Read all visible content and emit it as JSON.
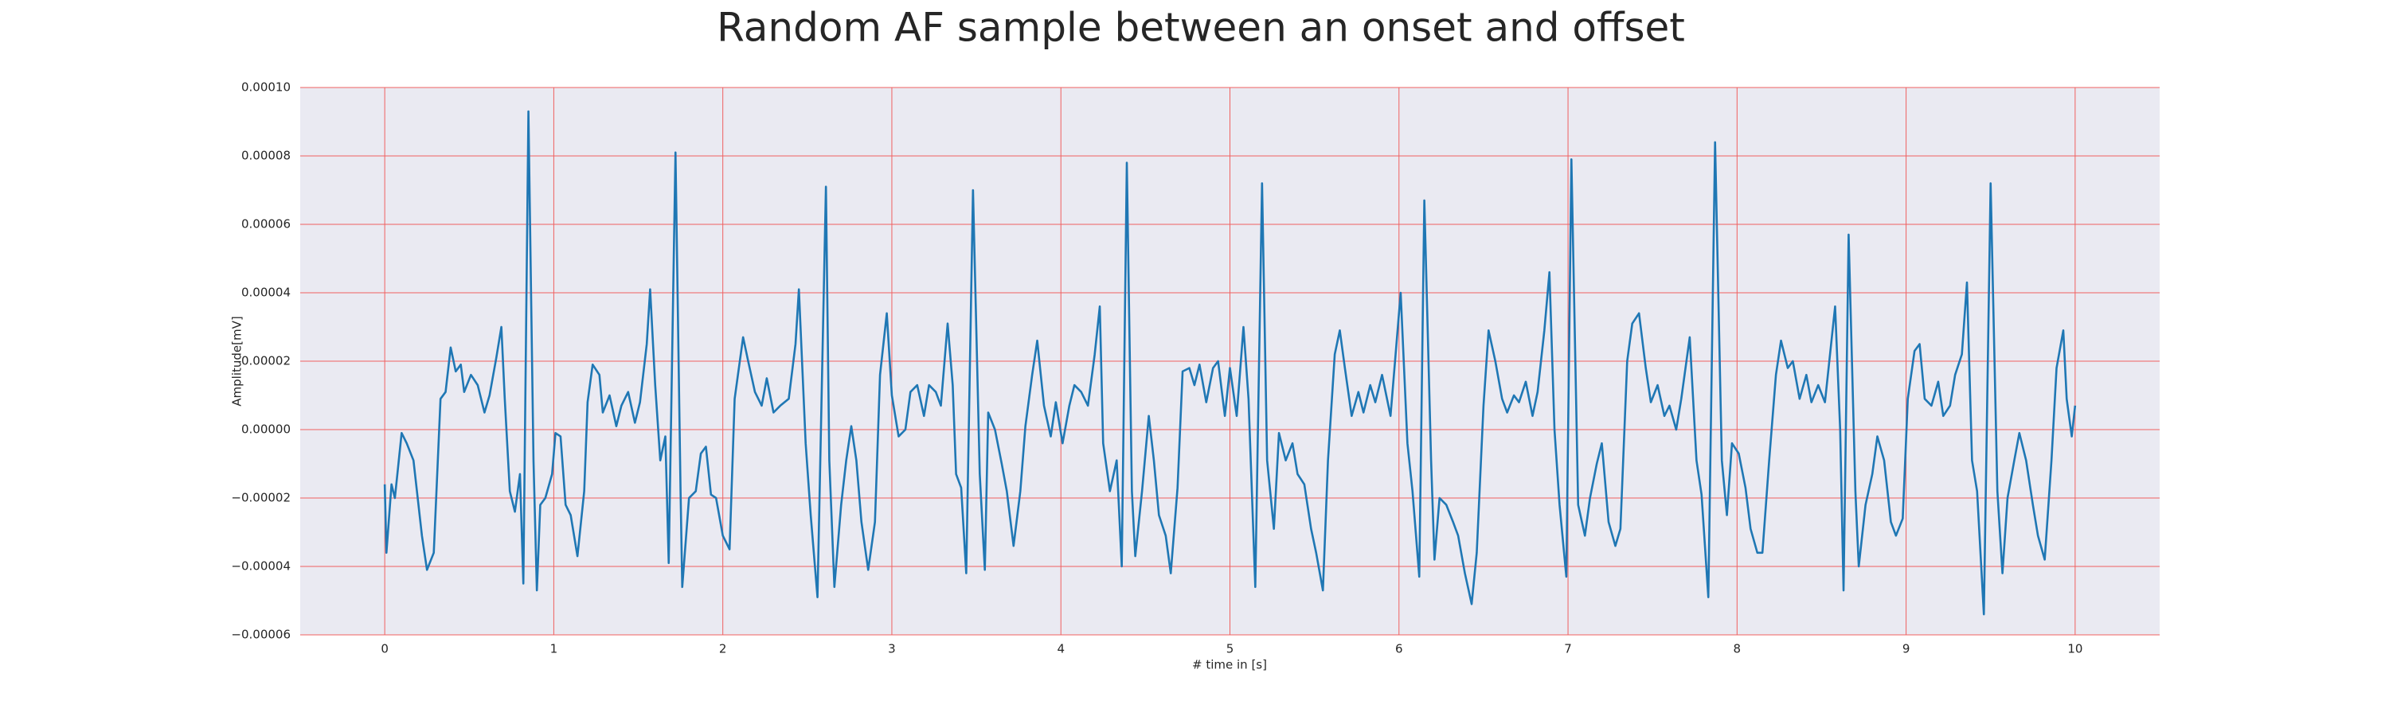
{
  "chart_data": {
    "type": "line",
    "title": "Random AF sample between an onset and offset",
    "xlabel": "# time in [s]",
    "ylabel": "Amplitude[mV]",
    "color": "#1f77b4",
    "grid": true,
    "grid_color": "#f06060",
    "background": "#eaeaf2",
    "xlim": [
      -0.5,
      10.5
    ],
    "ylim": [
      -6e-05,
      0.0001
    ],
    "xticks": [
      0,
      1,
      2,
      3,
      4,
      5,
      6,
      7,
      8,
      9,
      10
    ],
    "yticks": [
      {
        "value": -6e-05,
        "label": "−0.00006"
      },
      {
        "value": -4e-05,
        "label": "−0.00004"
      },
      {
        "value": -2e-05,
        "label": "−0.00002"
      },
      {
        "value": 0,
        "label": "0.00000"
      },
      {
        "value": 2e-05,
        "label": "0.00002"
      },
      {
        "value": 4e-05,
        "label": "0.00004"
      },
      {
        "value": 6e-05,
        "label": "0.00006"
      },
      {
        "value": 8e-05,
        "label": "0.00008"
      },
      {
        "value": 0.0001,
        "label": "0.00010"
      }
    ],
    "x": [
      0,
      0.01,
      0.04,
      0.06,
      0.1,
      0.13,
      0.17,
      0.22,
      0.25,
      0.29,
      0.33,
      0.36,
      0.39,
      0.42,
      0.45,
      0.47,
      0.51,
      0.55,
      0.59,
      0.62,
      0.66,
      0.69,
      0.71,
      0.74,
      0.77,
      0.8,
      0.82,
      0.85,
      0.88,
      0.9,
      0.92,
      0.95,
      0.99,
      1.01,
      1.04,
      1.07,
      1.1,
      1.14,
      1.18,
      1.2,
      1.23,
      1.27,
      1.29,
      1.33,
      1.37,
      1.4,
      1.44,
      1.48,
      1.51,
      1.55,
      1.57,
      1.6,
      1.63,
      1.66,
      1.68,
      1.72,
      1.75,
      1.76,
      1.8,
      1.84,
      1.87,
      1.9,
      1.93,
      1.96,
      2.0,
      2.04,
      2.07,
      2.12,
      2.15,
      2.19,
      2.23,
      2.26,
      2.3,
      2.34,
      2.39,
      2.43,
      2.45,
      2.49,
      2.52,
      2.56,
      2.61,
      2.63,
      2.66,
      2.7,
      2.73,
      2.76,
      2.79,
      2.82,
      2.86,
      2.9,
      2.93,
      2.97,
      3.0,
      3.04,
      3.08,
      3.11,
      3.15,
      3.19,
      3.22,
      3.26,
      3.29,
      3.33,
      3.36,
      3.38,
      3.41,
      3.44,
      3.48,
      3.52,
      3.55,
      3.57,
      3.61,
      3.65,
      3.68,
      3.72,
      3.76,
      3.79,
      3.83,
      3.86,
      3.9,
      3.94,
      3.97,
      4.01,
      4.05,
      4.08,
      4.12,
      4.16,
      4.2,
      4.23,
      4.25,
      4.29,
      4.33,
      4.36,
      4.39,
      4.42,
      4.44,
      4.48,
      4.52,
      4.55,
      4.58,
      4.62,
      4.65,
      4.69,
      4.72,
      4.76,
      4.79,
      4.82,
      4.86,
      4.9,
      4.93,
      4.97,
      5.0,
      5.04,
      5.08,
      5.11,
      5.15,
      5.19,
      5.22,
      5.26,
      5.29,
      5.33,
      5.37,
      5.4,
      5.44,
      5.48,
      5.51,
      5.55,
      5.58,
      5.62,
      5.65,
      5.68,
      5.72,
      5.76,
      5.79,
      5.83,
      5.86,
      5.9,
      5.95,
      5.98,
      6.01,
      6.05,
      6.08,
      6.12,
      6.15,
      6.19,
      6.21,
      6.24,
      6.28,
      6.32,
      6.35,
      6.39,
      6.43,
      6.46,
      6.5,
      6.53,
      6.57,
      6.61,
      6.64,
      6.68,
      6.71,
      6.75,
      6.79,
      6.82,
      6.86,
      6.89,
      6.92,
      6.95,
      6.99,
      7.02,
      7.06,
      7.1,
      7.13,
      7.17,
      7.2,
      7.24,
      7.28,
      7.31,
      7.35,
      7.38,
      7.42,
      7.46,
      7.49,
      7.53,
      7.57,
      7.6,
      7.64,
      7.67,
      7.72,
      7.76,
      7.79,
      7.83,
      7.87,
      7.91,
      7.94,
      7.97,
      8.01,
      8.05,
      8.08,
      8.12,
      8.15,
      8.19,
      8.23,
      8.26,
      8.3,
      8.33,
      8.37,
      8.41,
      8.44,
      8.48,
      8.52,
      8.55,
      8.58,
      8.61,
      8.63,
      8.66,
      8.7,
      8.72,
      8.76,
      8.8,
      8.83,
      8.87,
      8.91,
      8.94,
      8.98,
      9.01,
      9.05,
      9.08,
      9.11,
      9.15,
      9.19,
      9.22,
      9.26,
      9.29,
      9.33,
      9.36,
      9.39,
      9.42,
      9.46,
      9.5,
      9.54,
      9.57,
      9.6,
      9.64,
      9.67,
      9.71,
      9.75,
      9.78,
      9.82,
      9.86,
      9.89,
      9.93,
      9.95,
      9.98,
      10.0
    ],
    "values": [
      -1.6e-05,
      -3.6e-05,
      -1.6e-05,
      -2e-05,
      -1e-06,
      -4e-06,
      -9e-06,
      -3.1e-05,
      -4.1e-05,
      -3.6e-05,
      9e-06,
      1.1e-05,
      2.4e-05,
      1.7e-05,
      1.9e-05,
      1.1e-05,
      1.6e-05,
      1.3e-05,
      5e-06,
      1e-05,
      2.1e-05,
      3e-05,
      9e-06,
      -1.8e-05,
      -2.4e-05,
      -1.3e-05,
      -4.5e-05,
      9.3e-05,
      -9e-06,
      -4.7e-05,
      -2.2e-05,
      -2e-05,
      -1.3e-05,
      -1e-06,
      -2e-06,
      -2.2e-05,
      -2.5e-05,
      -3.7e-05,
      -1.8e-05,
      8e-06,
      1.9e-05,
      1.6e-05,
      5e-06,
      1e-05,
      1e-06,
      7e-06,
      1.1e-05,
      2e-06,
      8e-06,
      2.5e-05,
      4.1e-05,
      1.3e-05,
      -9e-06,
      -2e-06,
      -3.9e-05,
      8.1e-05,
      -1.8e-05,
      -4.6e-05,
      -2e-05,
      -1.8e-05,
      -7e-06,
      -5e-06,
      -1.9e-05,
      -2e-05,
      -3.1e-05,
      -3.5e-05,
      9e-06,
      2.7e-05,
      2e-05,
      1.1e-05,
      7e-06,
      1.5e-05,
      5e-06,
      7e-06,
      9e-06,
      2.5e-05,
      4.1e-05,
      -4e-06,
      -2.5e-05,
      -4.9e-05,
      7.1e-05,
      -9e-06,
      -4.6e-05,
      -2.2e-05,
      -9e-06,
      1e-06,
      -9e-06,
      -2.7e-05,
      -4.1e-05,
      -2.7e-05,
      1.6e-05,
      3.4e-05,
      1e-05,
      -2e-06,
      0,
      1.1e-05,
      1.3e-05,
      4e-06,
      1.3e-05,
      1.1e-05,
      7e-06,
      3.1e-05,
      1.3e-05,
      -1.3e-05,
      -1.7e-05,
      -4.2e-05,
      7e-05,
      -1.3e-05,
      -4.1e-05,
      5e-06,
      0,
      -1e-05,
      -1.8e-05,
      -3.4e-05,
      -1.8e-05,
      1e-06,
      1.6e-05,
      2.6e-05,
      7e-06,
      -2e-06,
      8e-06,
      -4e-06,
      7e-06,
      1.3e-05,
      1.1e-05,
      7e-06,
      2.2e-05,
      3.6e-05,
      -4e-06,
      -1.8e-05,
      -9e-06,
      -4e-05,
      7.8e-05,
      -1.8e-05,
      -3.7e-05,
      -1.8e-05,
      4e-06,
      -9e-06,
      -2.5e-05,
      -3.1e-05,
      -4.2e-05,
      -1.7e-05,
      1.7e-05,
      1.8e-05,
      1.3e-05,
      1.9e-05,
      8e-06,
      1.8e-05,
      2e-05,
      4e-06,
      1.8e-05,
      4e-06,
      3e-05,
      9e-06,
      -4.6e-05,
      7.2e-05,
      -9e-06,
      -2.9e-05,
      -1e-06,
      -9e-06,
      -4e-06,
      -1.3e-05,
      -1.6e-05,
      -2.9e-05,
      -3.6e-05,
      -4.7e-05,
      -9e-06,
      2.2e-05,
      2.9e-05,
      1.8e-05,
      4e-06,
      1.1e-05,
      5e-06,
      1.3e-05,
      8e-06,
      1.6e-05,
      4e-06,
      2.2e-05,
      4e-05,
      -4e-06,
      -1.8e-05,
      -4.3e-05,
      6.7e-05,
      -9e-06,
      -3.8e-05,
      -2e-05,
      -2.2e-05,
      -2.7e-05,
      -3.1e-05,
      -4.2e-05,
      -5.1e-05,
      -3.6e-05,
      7e-06,
      2.9e-05,
      2e-05,
      9e-06,
      5e-06,
      1e-05,
      8e-06,
      1.4e-05,
      4e-06,
      1.1e-05,
      2.9e-05,
      4.6e-05,
      0,
      -2.2e-05,
      -4.3e-05,
      7.9e-05,
      -2.2e-05,
      -3.1e-05,
      -2e-05,
      -1e-05,
      -4e-06,
      -2.7e-05,
      -3.4e-05,
      -2.9e-05,
      2e-05,
      3.1e-05,
      3.4e-05,
      1.8e-05,
      8e-06,
      1.3e-05,
      4e-06,
      7e-06,
      0,
      9e-06,
      2.7e-05,
      -9e-06,
      -1.9e-05,
      -4.9e-05,
      8.4e-05,
      -9e-06,
      -2.5e-05,
      -4e-06,
      -7e-06,
      -1.7e-05,
      -2.9e-05,
      -3.6e-05,
      -3.6e-05,
      -9e-06,
      1.6e-05,
      2.6e-05,
      1.8e-05,
      2e-05,
      9e-06,
      1.6e-05,
      8e-06,
      1.3e-05,
      8e-06,
      2.2e-05,
      3.6e-05,
      0,
      -4.7e-05,
      5.7e-05,
      -1.8e-05,
      -4e-05,
      -2.2e-05,
      -1.3e-05,
      -2e-06,
      -9e-06,
      -2.7e-05,
      -3.1e-05,
      -2.6e-05,
      9e-06,
      2.3e-05,
      2.5e-05,
      9e-06,
      7e-06,
      1.4e-05,
      4e-06,
      7e-06,
      1.6e-05,
      2.2e-05,
      4.3e-05,
      -9e-06,
      -1.8e-05,
      -5.4e-05,
      7.2e-05,
      -1.8e-05,
      -4.2e-05,
      -2e-05,
      -9e-06,
      -1e-06,
      -9e-06,
      -2.2e-05,
      -3.1e-05,
      -3.8e-05,
      -9e-06,
      1.8e-05,
      2.9e-05,
      9e-06,
      -2e-06,
      7e-06
    ]
  }
}
